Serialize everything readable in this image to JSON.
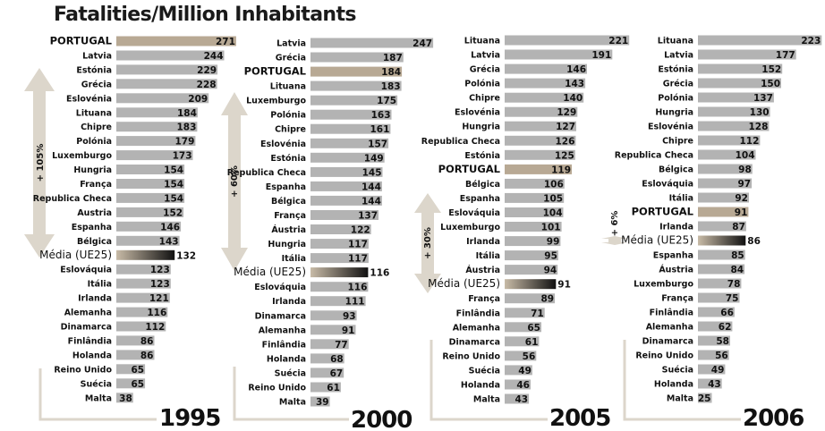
{
  "chart_data": {
    "type": "bar",
    "orientation": "horizontal",
    "title": "Fatalities/Million Inhabitants",
    "colors": {
      "bar": "#b3b3b3",
      "portugal_bar": "#b8a994",
      "average_gradient_start": "#c8bba7",
      "average_gradient_end": "#111111",
      "arrow": "#dcd6cb",
      "bracket": "#dcd6cb"
    },
    "panels": [
      {
        "year": "1995",
        "growth_annotation": "+ 105%",
        "bars": [
          {
            "label": "PORTUGAL",
            "value": 271,
            "kind": "portugal"
          },
          {
            "label": "Latvia",
            "value": 244
          },
          {
            "label": "Estónia",
            "value": 229
          },
          {
            "label": "Grécia",
            "value": 228
          },
          {
            "label": "Eslovénia",
            "value": 209
          },
          {
            "label": "Lituana",
            "value": 184
          },
          {
            "label": "Chipre",
            "value": 183
          },
          {
            "label": "Polónia",
            "value": 179
          },
          {
            "label": "Luxemburgo",
            "value": 173
          },
          {
            "label": "Hungria",
            "value": 154
          },
          {
            "label": "França",
            "value": 154
          },
          {
            "label": "Republica Checa",
            "value": 154
          },
          {
            "label": "Austria",
            "value": 152
          },
          {
            "label": "Espanha",
            "value": 146
          },
          {
            "label": "Bélgica",
            "value": 143
          },
          {
            "label": "Média (UE25)",
            "value": 132,
            "kind": "average"
          },
          {
            "label": "Eslováquia",
            "value": 123
          },
          {
            "label": "Itália",
            "value": 123
          },
          {
            "label": "Irlanda",
            "value": 121
          },
          {
            "label": "Alemanha",
            "value": 116
          },
          {
            "label": "Dinamarca",
            "value": 112
          },
          {
            "label": "Finlândia",
            "value": 86
          },
          {
            "label": "Holanda",
            "value": 86
          },
          {
            "label": "Reino Unido",
            "value": 65
          },
          {
            "label": "Suécia",
            "value": 65
          },
          {
            "label": "Malta",
            "value": 38
          }
        ]
      },
      {
        "year": "2000",
        "growth_annotation": "+ 60%",
        "bars": [
          {
            "label": "Latvia",
            "value": 247
          },
          {
            "label": "Grécia",
            "value": 187
          },
          {
            "label": "PORTUGAL",
            "value": 184,
            "kind": "portugal"
          },
          {
            "label": "Lituana",
            "value": 183
          },
          {
            "label": "Luxemburgo",
            "value": 175
          },
          {
            "label": "Polónia",
            "value": 163
          },
          {
            "label": "Chipre",
            "value": 161
          },
          {
            "label": "Eslovénia",
            "value": 157
          },
          {
            "label": "Estónia",
            "value": 149
          },
          {
            "label": "Republica Checa",
            "value": 145
          },
          {
            "label": "Espanha",
            "value": 144
          },
          {
            "label": "Bélgica",
            "value": 144
          },
          {
            "label": "França",
            "value": 137
          },
          {
            "label": "Áustria",
            "value": 122
          },
          {
            "label": "Hungria",
            "value": 117
          },
          {
            "label": "Itália",
            "value": 117
          },
          {
            "label": "Média (UE25)",
            "value": 116,
            "kind": "average"
          },
          {
            "label": "Eslováquia",
            "value": 116
          },
          {
            "label": "Irlanda",
            "value": 111
          },
          {
            "label": "Dinamarca",
            "value": 93
          },
          {
            "label": "Alemanha",
            "value": 91
          },
          {
            "label": "Finlândia",
            "value": 77
          },
          {
            "label": "Holanda",
            "value": 68
          },
          {
            "label": "Suécia",
            "value": 67
          },
          {
            "label": "Reino Unido",
            "value": 61
          },
          {
            "label": "Malta",
            "value": 39
          }
        ]
      },
      {
        "year": "2005",
        "growth_annotation": "+ 30%",
        "bars": [
          {
            "label": "Lituana",
            "value": 221
          },
          {
            "label": "Latvia",
            "value": 191
          },
          {
            "label": "Grécia",
            "value": 146
          },
          {
            "label": "Polónia",
            "value": 143
          },
          {
            "label": "Chipre",
            "value": 140
          },
          {
            "label": "Eslovénia",
            "value": 129
          },
          {
            "label": "Hungria",
            "value": 127
          },
          {
            "label": "Republica Checa",
            "value": 126
          },
          {
            "label": "Estónia",
            "value": 125
          },
          {
            "label": "PORTUGAL",
            "value": 119,
            "kind": "portugal"
          },
          {
            "label": "Bélgica",
            "value": 106
          },
          {
            "label": "Espanha",
            "value": 105
          },
          {
            "label": "Eslováquia",
            "value": 104
          },
          {
            "label": "Luxemburgo",
            "value": 101
          },
          {
            "label": "Irlanda",
            "value": 99
          },
          {
            "label": "Itália",
            "value": 95
          },
          {
            "label": "Áustria",
            "value": 94
          },
          {
            "label": "Média (UE25)",
            "value": 91,
            "kind": "average"
          },
          {
            "label": "França",
            "value": 89
          },
          {
            "label": "Finlândia",
            "value": 71
          },
          {
            "label": "Alemanha",
            "value": 65
          },
          {
            "label": "Dinamarca",
            "value": 61
          },
          {
            "label": "Reino Unido",
            "value": 56
          },
          {
            "label": "Suécia",
            "value": 49
          },
          {
            "label": "Holanda",
            "value": 46
          },
          {
            "label": "Malta",
            "value": 43
          }
        ]
      },
      {
        "year": "2006",
        "growth_annotation": "+ 6%",
        "bars": [
          {
            "label": "Lituana",
            "value": 223
          },
          {
            "label": "Latvia",
            "value": 177
          },
          {
            "label": "Estónia",
            "value": 152
          },
          {
            "label": "Grécia",
            "value": 150
          },
          {
            "label": "Polónia",
            "value": 137
          },
          {
            "label": "Hungria",
            "value": 130
          },
          {
            "label": "Eslovénia",
            "value": 128
          },
          {
            "label": "Chipre",
            "value": 112
          },
          {
            "label": "Republica Checa",
            "value": 104
          },
          {
            "label": "Bélgica",
            "value": 98
          },
          {
            "label": "Eslováquia",
            "value": 97
          },
          {
            "label": "Itália",
            "value": 92
          },
          {
            "label": "PORTUGAL",
            "value": 91,
            "kind": "portugal"
          },
          {
            "label": "Irlanda",
            "value": 87
          },
          {
            "label": "Média (UE25)",
            "value": 86,
            "kind": "average"
          },
          {
            "label": "Espanha",
            "value": 85
          },
          {
            "label": "Áustria",
            "value": 84
          },
          {
            "label": "Luxemburgo",
            "value": 78
          },
          {
            "label": "França",
            "value": 75
          },
          {
            "label": "Finlândia",
            "value": 66
          },
          {
            "label": "Alemanha",
            "value": 62
          },
          {
            "label": "Dinamarca",
            "value": 58
          },
          {
            "label": "Reino Unido",
            "value": 56
          },
          {
            "label": "Suécia",
            "value": 49
          },
          {
            "label": "Holanda",
            "value": 43
          },
          {
            "label": "Malta",
            "value": 25
          }
        ]
      }
    ]
  }
}
